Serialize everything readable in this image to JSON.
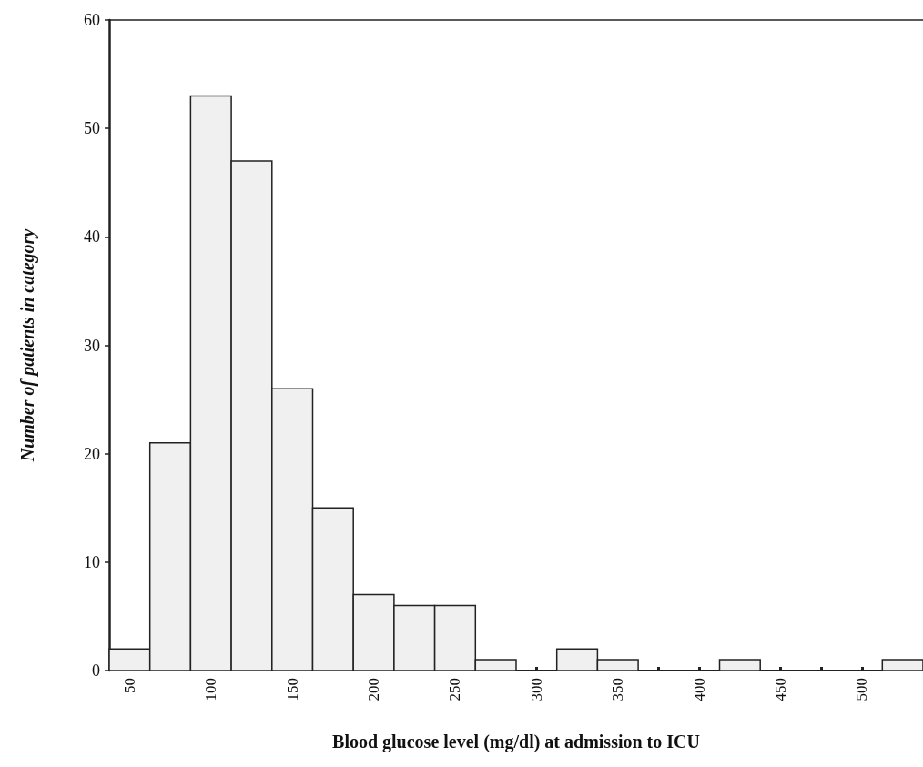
{
  "chart_data": {
    "type": "histogram",
    "xlabel": "Blood glucose level (mg/dl) at admission to ICU",
    "ylabel": "Number of patients in category",
    "bins": [
      37.5,
      62.5,
      87.5,
      112.5,
      137.5,
      162.5,
      187.5,
      212.5,
      237.5,
      262.5,
      287.5,
      312.5,
      337.5,
      362.5,
      387.5,
      412.5,
      437.5,
      462.5,
      487.5,
      512.5,
      537.5
    ],
    "values": [
      2,
      21,
      53,
      47,
      26,
      15,
      7,
      6,
      6,
      1,
      0,
      2,
      1,
      0,
      0,
      1,
      0,
      0,
      0,
      1
    ],
    "color": "#f0f0f0",
    "xlim": [
      37.5,
      537.5
    ],
    "xticks": [
      50,
      {
        "value": 75,
        "label": null
      },
      100,
      {
        "value": 125,
        "label": null
      },
      150,
      {
        "value": 175,
        "label": null
      },
      200,
      {
        "value": 225,
        "label": null
      },
      250,
      {
        "value": 275,
        "label": null
      },
      300,
      {
        "value": 325,
        "label": null
      },
      350,
      {
        "value": 375,
        "label": null
      },
      400,
      {
        "value": 425,
        "label": null
      },
      450,
      {
        "value": 475,
        "label": null
      },
      500,
      {
        "value": 525,
        "label": null
      }
    ],
    "ylim": [
      0,
      60
    ],
    "yticks": [
      0,
      10,
      20,
      30,
      40,
      50,
      60
    ],
    "grid": false
  }
}
